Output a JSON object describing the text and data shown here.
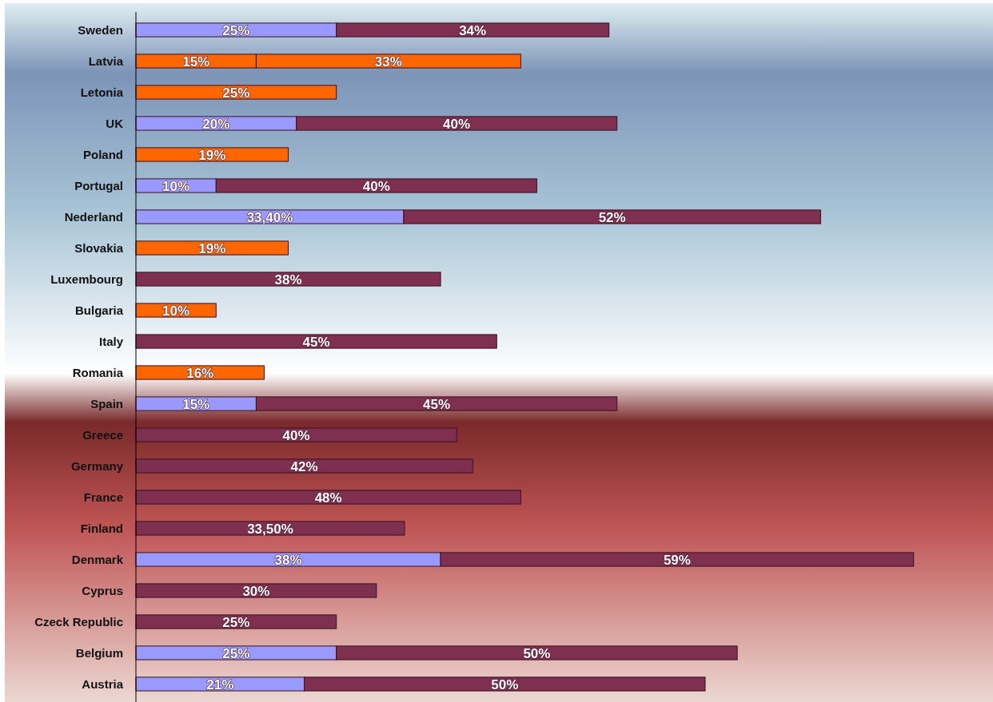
{
  "chart_data": {
    "type": "bar",
    "orientation": "horizontal",
    "stacked": true,
    "tick_labels": "y",
    "categories": [
      "Sweden",
      "Latvia",
      "Letonia",
      "UK",
      "Poland",
      "Portugal",
      "Nederland",
      "Slovakia",
      "Luxembourg",
      "Bulgaria",
      "Italy",
      "Romania",
      "Spain",
      "Greece",
      "Germany",
      "France",
      "Finland",
      "Denmark",
      "Cyprus",
      "Czeck Republic",
      "Belgium",
      "Austria"
    ],
    "series": [
      {
        "values": [
          25,
          15,
          25,
          20,
          19,
          10,
          33.4,
          19,
          null,
          10,
          null,
          16,
          15,
          null,
          null,
          null,
          null,
          38,
          null,
          null,
          25,
          21
        ],
        "colors": [
          "#9999ff",
          "#ff6600",
          "#ff6600",
          "#9999ff",
          "#ff6600",
          "#9999ff",
          "#9999ff",
          "#ff6600",
          null,
          "#ff6600",
          null,
          "#ff6600",
          "#9999ff",
          null,
          null,
          null,
          null,
          "#9999ff",
          null,
          null,
          "#9999ff",
          "#9999ff"
        ],
        "value_labels": [
          "25%",
          "15%",
          "25%",
          "20%",
          "19%",
          "10%",
          "33,40%",
          "19%",
          null,
          "10%",
          null,
          "16%",
          "15%",
          null,
          null,
          null,
          null,
          "38%",
          null,
          null,
          "25%",
          "21%"
        ]
      },
      {
        "values": [
          34,
          33,
          null,
          40,
          null,
          40,
          52,
          null,
          38,
          null,
          45,
          null,
          45,
          40,
          42,
          48,
          33.5,
          59,
          30,
          25,
          50,
          50
        ],
        "colors": [
          "#7f2f50",
          "#ff6600",
          null,
          "#7f2f50",
          null,
          "#7f2f50",
          "#7f2f50",
          null,
          "#7f2f50",
          null,
          "#7f2f50",
          null,
          "#7f2f50",
          "#7f2f50",
          "#7f2f50",
          "#7f2f50",
          "#7f2f50",
          "#7f2f50",
          "#7f2f50",
          "#7f2f50",
          "#7f2f50",
          "#7f2f50"
        ],
        "value_labels": [
          "34%",
          "33%",
          null,
          "40%",
          null,
          "40%",
          "52%",
          null,
          "38%",
          null,
          "45%",
          null,
          "45%",
          "40%",
          "42%",
          "48%",
          "33,50%",
          "59%",
          "30%",
          "25%",
          "50%",
          "50%"
        ]
      }
    ]
  }
}
